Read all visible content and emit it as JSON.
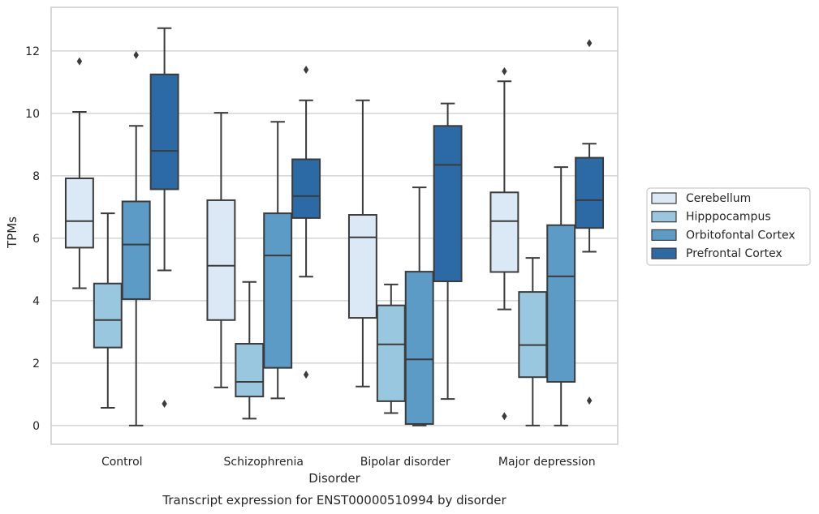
{
  "chart_data": {
    "type": "boxplot",
    "caption": "Transcript expression for ENST00000510994 by disorder",
    "xlabel": "Disorder",
    "ylabel": "TPMs",
    "ylim": [
      -0.6,
      13.4
    ],
    "yticks": [
      0,
      2,
      4,
      6,
      8,
      10,
      12
    ],
    "grid": true,
    "legend_position": "right",
    "categories": [
      "Control",
      "Schizophrenia",
      "Bipolar disorder",
      "Major depression"
    ],
    "series": [
      {
        "name": "Cerebellum",
        "color": "#dbe8f5",
        "boxes": [
          {
            "whisker_low": 4.4,
            "q1": 5.7,
            "median": 6.55,
            "q3": 7.92,
            "whisker_high": 10.05,
            "outliers": [
              11.67
            ]
          },
          {
            "whisker_low": 1.22,
            "q1": 3.38,
            "median": 5.12,
            "q3": 7.22,
            "whisker_high": 10.02,
            "outliers": []
          },
          {
            "whisker_low": 1.25,
            "q1": 3.45,
            "median": 6.03,
            "q3": 6.75,
            "whisker_high": 10.42,
            "outliers": []
          },
          {
            "whisker_low": 3.72,
            "q1": 4.92,
            "median": 6.55,
            "q3": 7.47,
            "whisker_high": 11.03,
            "outliers": [
              11.35,
              0.3
            ]
          }
        ]
      },
      {
        "name": "Hipppocampus",
        "color": "#9ac7e0",
        "boxes": [
          {
            "whisker_low": 0.57,
            "q1": 2.5,
            "median": 3.38,
            "q3": 4.55,
            "whisker_high": 6.8,
            "outliers": []
          },
          {
            "whisker_low": 0.22,
            "q1": 0.93,
            "median": 1.4,
            "q3": 2.62,
            "whisker_high": 4.6,
            "outliers": []
          },
          {
            "whisker_low": 0.4,
            "q1": 0.78,
            "median": 2.6,
            "q3": 3.85,
            "whisker_high": 4.52,
            "outliers": []
          },
          {
            "whisker_low": 0.0,
            "q1": 1.55,
            "median": 2.58,
            "q3": 4.28,
            "whisker_high": 5.37,
            "outliers": []
          }
        ]
      },
      {
        "name": "Orbitofontal Cortex",
        "color": "#5b9bc6",
        "boxes": [
          {
            "whisker_low": 0.0,
            "q1": 4.05,
            "median": 5.8,
            "q3": 7.18,
            "whisker_high": 9.6,
            "outliers": [
              11.87
            ]
          },
          {
            "whisker_low": 0.87,
            "q1": 1.85,
            "median": 5.45,
            "q3": 6.8,
            "whisker_high": 9.73,
            "outliers": []
          },
          {
            "whisker_low": 0.0,
            "q1": 0.05,
            "median": 2.12,
            "q3": 4.93,
            "whisker_high": 7.63,
            "outliers": []
          },
          {
            "whisker_low": 0.0,
            "q1": 1.4,
            "median": 4.78,
            "q3": 6.42,
            "whisker_high": 8.28,
            "outliers": []
          }
        ]
      },
      {
        "name": "Prefrontal Cortex",
        "color": "#2b6aa5",
        "boxes": [
          {
            "whisker_low": 4.97,
            "q1": 7.57,
            "median": 8.8,
            "q3": 11.25,
            "whisker_high": 12.73,
            "outliers": [
              0.7
            ]
          },
          {
            "whisker_low": 4.77,
            "q1": 6.65,
            "median": 7.35,
            "q3": 8.53,
            "whisker_high": 10.42,
            "outliers": [
              11.4,
              1.63
            ]
          },
          {
            "whisker_low": 0.85,
            "q1": 4.62,
            "median": 8.35,
            "q3": 9.6,
            "whisker_high": 10.32,
            "outliers": []
          },
          {
            "whisker_low": 5.57,
            "q1": 6.33,
            "median": 7.22,
            "q3": 8.58,
            "whisker_high": 9.03,
            "outliers": [
              12.25,
              0.8
            ]
          }
        ]
      }
    ]
  }
}
